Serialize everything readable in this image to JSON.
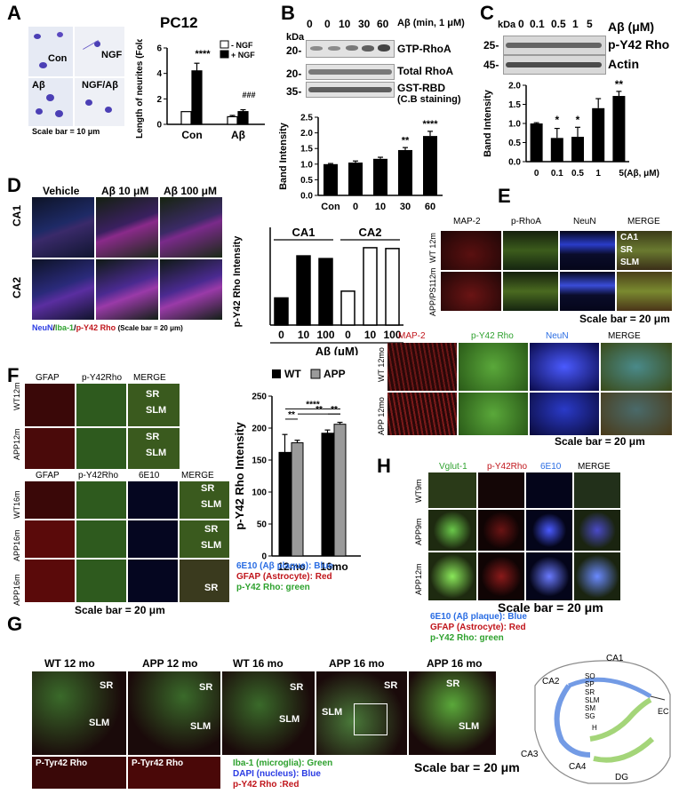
{
  "panel_letters": [
    "A",
    "B",
    "C",
    "D",
    "E",
    "F",
    "G",
    "H"
  ],
  "A": {
    "micro_labels": [
      "Con",
      "NGF",
      "Aβ",
      "NGF/Aβ"
    ],
    "scale_bar": "Scale bar = 10 μm",
    "cell_line": "PC12",
    "ylabel": "Length of neurites (Fold)",
    "legend": [
      "- NGF",
      "+ NGF"
    ],
    "sig_labels": [
      "****",
      "###"
    ]
  },
  "B": {
    "kda": "kDa",
    "lanes": [
      "0",
      "0",
      "10",
      "30",
      "60"
    ],
    "treatment": "Aβ (min, 1 μM)",
    "kda_marks": [
      "20-",
      "20-",
      "35-"
    ],
    "blot_labels": [
      "GTP-RhoA",
      "Total RhoA",
      "GST-RBD",
      "(C.B staining)"
    ],
    "ylabel": "Band Intensity",
    "sig_labels": [
      "**",
      "****"
    ]
  },
  "C": {
    "kda": "kDa",
    "lanes": [
      "0",
      "0.1",
      "0.5",
      "1",
      "5"
    ],
    "treatment": "Aβ (μM)",
    "kda_marks": [
      "25-",
      "45-"
    ],
    "blot_labels": [
      "p-Y42 Rho",
      "Actin"
    ],
    "ylabel": "Band Intensity",
    "sig_labels": [
      "*",
      "*",
      "**"
    ]
  },
  "D": {
    "col_labels": [
      "Vehicle",
      "Aβ 10 μM",
      "Aβ 100 μM"
    ],
    "row_labels": [
      "CA1",
      "CA2"
    ],
    "stain_legend": {
      "neun": "NeuN",
      "iba": "Iba-1",
      "py42": "p-Y42 Rho",
      "scale": "(Scale bar = 20 μm)",
      "sep": "/"
    },
    "ylabel": "p-Y42 Rho Intensity",
    "group_labels": [
      "CA1",
      "CA2"
    ],
    "xlabel": "Aβ (μM)"
  },
  "E": {
    "top_cols": [
      "MAP-2",
      "p-RhoA",
      "NeuN",
      "MERGE"
    ],
    "top_rows": [
      "WT 12m",
      "APP/PS112m"
    ],
    "region_labels": [
      "CA1",
      "SR",
      "SLM"
    ],
    "scale_bar": "Scale bar = 20 μm",
    "bottom_cols": [
      "MAP-2",
      "p-Y42 Rho",
      "NeuN",
      "MERGE"
    ],
    "bottom_rows": [
      "WT 12mo",
      "APP 12mo"
    ],
    "scale_bar2": "Scale bar = 20 μm"
  },
  "F": {
    "top_cols": [
      "GFAP",
      "p-Y42Rho",
      "MERGE"
    ],
    "top_rows": [
      "WT12m",
      "APP12m"
    ],
    "bottom_cols": [
      "GFAP",
      "p-Y42Rho",
      "6E10",
      "MERGE"
    ],
    "bottom_rows": [
      "WT16m",
      "APP16m",
      "APP16m"
    ],
    "region_labels": [
      "SR",
      "SLM"
    ],
    "legend": [
      "WT",
      "APP"
    ],
    "ylabel": "p-Y42 Rho Intensity",
    "sig_labels": [
      "**",
      "**",
      "****",
      "**"
    ],
    "stain_legend": [
      "6E10 (Aβ plaque): Blue",
      "GFAP (Astrocyte): Red",
      "p-Y42 Rho: green"
    ],
    "scale_bar": "Scale bar = 20 μm"
  },
  "G": {
    "col_labels": [
      "WT 12 mo",
      "APP 12 mo",
      "WT 16 mo",
      "APP 16 mo",
      "APP 16 mo"
    ],
    "region_labels": [
      "SR",
      "SLM"
    ],
    "sub_labels": [
      "P-Tyr42 Rho",
      "P-Tyr42 Rho"
    ],
    "stain_legend": [
      "Iba-1 (microglia): Green",
      "DAPI (nucleus): Blue",
      "p-Y42 Rho :Red"
    ],
    "scale_bar": "Scale bar = 20 μm",
    "hippo_labels": [
      "CA1",
      "CA2",
      "SO",
      "SP",
      "SR",
      "SLM",
      "SM",
      "SG",
      "H",
      "EC",
      "CA3",
      "CA4",
      "DG"
    ]
  },
  "H": {
    "cols": [
      "Vglut-1",
      "p-Y42Rho",
      "6E10",
      "MERGE"
    ],
    "rows": [
      "WT9m",
      "APP9m",
      "APP12m"
    ],
    "scale_bar": "Scale bar = 20 μm",
    "stain_legend": [
      "6E10 (Aβ plaque): Blue",
      "GFAP (Astrocyte): Red",
      "p-Y42 Rho: green"
    ]
  },
  "chart_data": [
    {
      "type": "bar",
      "id": "A",
      "categories": [
        "Con",
        "Aβ"
      ],
      "series": [
        {
          "name": "- NGF",
          "values": [
            1.0,
            0.6
          ],
          "errors": [
            0,
            0.1
          ]
        },
        {
          "name": "+ NGF",
          "values": [
            4.2,
            1.0
          ],
          "errors": [
            0.6,
            0.15
          ]
        }
      ],
      "ylabel": "Length of neurites (Fold)",
      "ylim": [
        0,
        6
      ],
      "yticks": [
        0,
        2,
        4,
        6
      ]
    },
    {
      "type": "bar",
      "id": "B",
      "categories": [
        "Con",
        "0",
        "10",
        "30",
        "60"
      ],
      "values": [
        1.0,
        1.05,
        1.17,
        1.45,
        1.9
      ],
      "errors": [
        0.02,
        0.05,
        0.05,
        0.08,
        0.15
      ],
      "ylabel": "Band Intensity",
      "ylim": [
        0,
        2.5
      ],
      "yticks": [
        0.0,
        0.5,
        1.0,
        1.5,
        2.0,
        2.5
      ]
    },
    {
      "type": "bar",
      "id": "C",
      "categories": [
        "0",
        "0.1",
        "0.5",
        "1",
        "5(Aβ, μM)"
      ],
      "values": [
        1.0,
        0.62,
        0.65,
        1.4,
        1.72
      ],
      "errors": [
        0.02,
        0.25,
        0.25,
        0.25,
        0.12
      ],
      "ylabel": "Band Intensity",
      "ylim": [
        0,
        2.0
      ],
      "yticks": [
        0.0,
        0.5,
        1.0,
        1.5,
        2.0
      ]
    },
    {
      "type": "bar",
      "id": "D",
      "categories": [
        "0",
        "10",
        "100",
        "0",
        "10",
        "100"
      ],
      "groups": [
        "CA1",
        "CA2"
      ],
      "values": [
        1.0,
        2.55,
        2.45,
        1.25,
        2.85,
        2.82
      ],
      "ylabel": "p-Y42 Rho Intensity",
      "xlabel": "Aβ (μM)",
      "ylim": [
        0,
        3.6
      ]
    },
    {
      "type": "bar",
      "id": "F",
      "categories": [
        "12mo",
        "16mo"
      ],
      "series": [
        {
          "name": "WT",
          "values": [
            162,
            192
          ],
          "errors": [
            28,
            5
          ]
        },
        {
          "name": "APP",
          "values": [
            177,
            206
          ],
          "errors": [
            4,
            3
          ]
        }
      ],
      "ylabel": "p-Y42 Rho Intensity",
      "ylim": [
        0,
        250
      ],
      "yticks": [
        0,
        50,
        100,
        150,
        200,
        250
      ]
    }
  ]
}
